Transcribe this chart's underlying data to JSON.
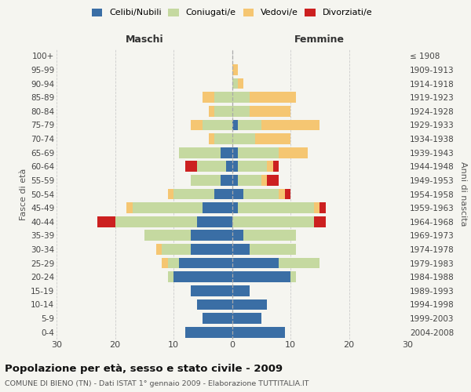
{
  "age_groups": [
    "0-4",
    "5-9",
    "10-14",
    "15-19",
    "20-24",
    "25-29",
    "30-34",
    "35-39",
    "40-44",
    "45-49",
    "50-54",
    "55-59",
    "60-64",
    "65-69",
    "70-74",
    "75-79",
    "80-84",
    "85-89",
    "90-94",
    "95-99",
    "100+"
  ],
  "birth_years": [
    "2004-2008",
    "1999-2003",
    "1994-1998",
    "1989-1993",
    "1984-1988",
    "1979-1983",
    "1974-1978",
    "1969-1973",
    "1964-1968",
    "1959-1963",
    "1954-1958",
    "1949-1953",
    "1944-1948",
    "1939-1943",
    "1934-1938",
    "1929-1933",
    "1924-1928",
    "1919-1923",
    "1914-1918",
    "1909-1913",
    "≤ 1908"
  ],
  "male_celibi": [
    8,
    5,
    6,
    7,
    10,
    9,
    7,
    7,
    6,
    5,
    3,
    2,
    1,
    2,
    0,
    0,
    0,
    0,
    0,
    0,
    0
  ],
  "male_coniugati": [
    0,
    0,
    0,
    0,
    1,
    2,
    5,
    8,
    14,
    12,
    7,
    5,
    5,
    7,
    3,
    5,
    3,
    3,
    0,
    0,
    0
  ],
  "male_vedovi": [
    0,
    0,
    0,
    0,
    0,
    1,
    1,
    0,
    0,
    1,
    1,
    0,
    0,
    0,
    1,
    2,
    1,
    2,
    0,
    0,
    0
  ],
  "male_divorziati": [
    0,
    0,
    0,
    0,
    0,
    0,
    0,
    0,
    3,
    0,
    0,
    0,
    2,
    0,
    0,
    0,
    0,
    0,
    0,
    0,
    0
  ],
  "female_nubili": [
    9,
    5,
    6,
    3,
    10,
    8,
    3,
    2,
    0,
    1,
    2,
    1,
    1,
    1,
    0,
    1,
    0,
    0,
    0,
    0,
    0
  ],
  "female_coniugate": [
    0,
    0,
    0,
    0,
    1,
    7,
    8,
    9,
    14,
    13,
    6,
    4,
    5,
    7,
    4,
    4,
    3,
    3,
    1,
    0,
    0
  ],
  "female_vedove": [
    0,
    0,
    0,
    0,
    0,
    0,
    0,
    0,
    0,
    1,
    1,
    1,
    1,
    5,
    6,
    10,
    7,
    8,
    1,
    1,
    0
  ],
  "female_divorziate": [
    0,
    0,
    0,
    0,
    0,
    0,
    0,
    0,
    2,
    1,
    1,
    2,
    1,
    0,
    0,
    0,
    0,
    0,
    0,
    0,
    0
  ],
  "color_celibi": "#3a6ea5",
  "color_coniugati": "#c5d9a0",
  "color_vedovi": "#f5c672",
  "color_divorziati": "#cc2020",
  "title": "Popolazione per età, sesso e stato civile - 2009",
  "subtitle": "COMUNE DI BIENO (TN) - Dati ISTAT 1° gennaio 2009 - Elaborazione TUTTITALIA.IT",
  "label_maschi": "Maschi",
  "label_femmine": "Femmine",
  "label_fasce": "Fasce di età",
  "label_anni": "Anni di nascita",
  "legend_celibi": "Celibi/Nubili",
  "legend_coniugati": "Coniugati/e",
  "legend_vedovi": "Vedovi/e",
  "legend_divorziati": "Divorziati/e",
  "xlim": 30,
  "bg_color": "#f5f5f0",
  "grid_color": "#cccccc"
}
